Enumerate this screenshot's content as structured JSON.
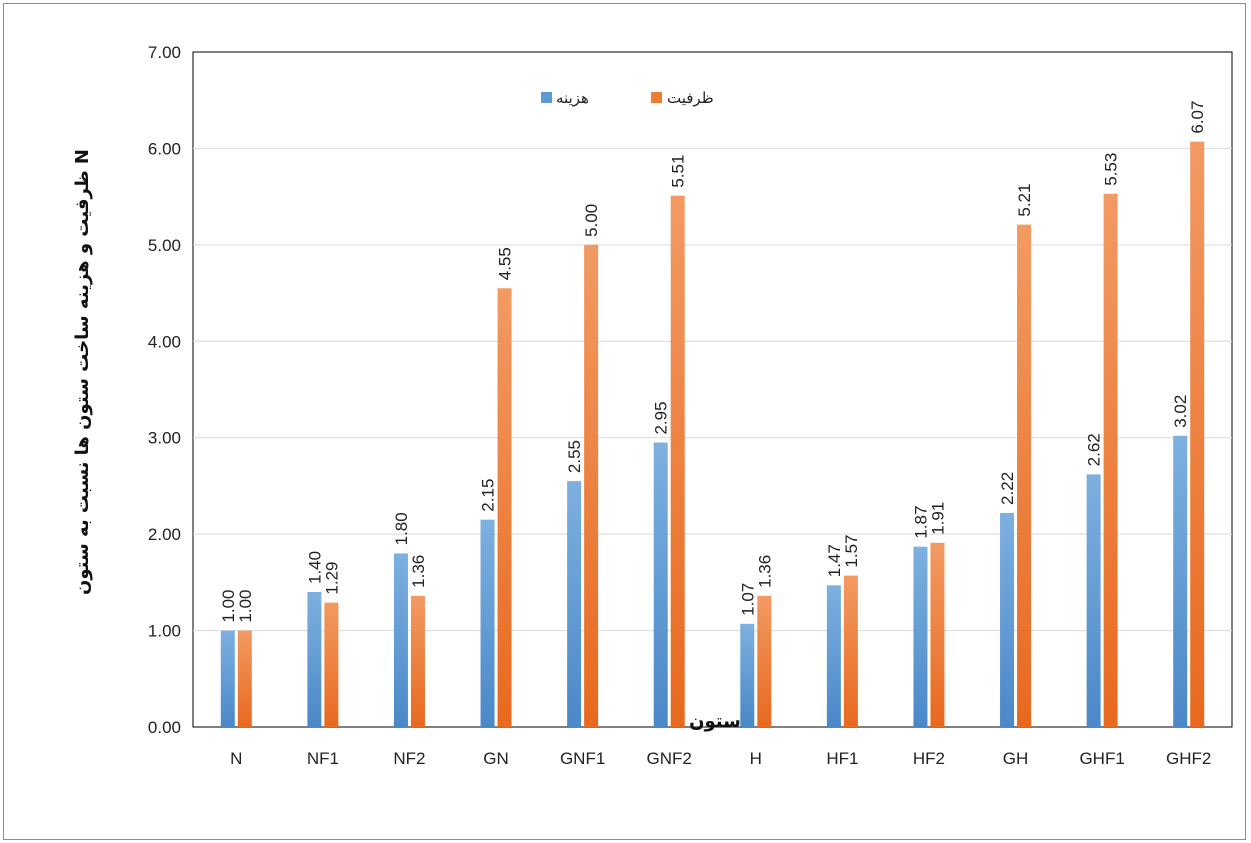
{
  "chart_data": {
    "type": "bar",
    "categories": [
      "N",
      "NF1",
      "NF2",
      "GN",
      "GNF1",
      "GNF2",
      "H",
      "HF1",
      "HF2",
      "GH",
      "GHF1",
      "GHF2"
    ],
    "series": [
      {
        "name": "هزینه",
        "color": "#5b9bd5",
        "values": [
          1.0,
          1.4,
          1.8,
          2.15,
          2.55,
          2.95,
          1.07,
          1.47,
          1.87,
          2.22,
          2.62,
          3.02
        ]
      },
      {
        "name": "ظرفیت",
        "color": "#ed7d31",
        "values": [
          1.0,
          1.29,
          1.36,
          4.55,
          5.0,
          5.51,
          1.36,
          1.57,
          1.91,
          5.21,
          5.53,
          6.07
        ]
      }
    ],
    "data_labels": {
      "0": [
        "1.00",
        "1.40",
        "1.80",
        "2.15",
        "2.55",
        "2.95",
        "1.07",
        "1.47",
        "1.87",
        "2.22",
        "2.62",
        "3.02"
      ],
      "1": [
        "1.00",
        "1.29",
        "1.36",
        "4.55",
        "5.00",
        "5.51",
        "1.36",
        "1.57",
        "1.91",
        "5.21",
        "5.53",
        "6.07"
      ]
    },
    "xlabel": "ستون",
    "ylabel": "ظرفیت و هزینه ساخت ستون ها نسبت به ستون N",
    "ylim": [
      0,
      7
    ],
    "yticks": [
      0,
      1,
      2,
      3,
      4,
      5,
      6,
      7
    ],
    "ytick_labels": [
      "0.00",
      "1.00",
      "2.00",
      "3.00",
      "4.00",
      "5.00",
      "6.00",
      "7.00"
    ],
    "grid": true,
    "legend_position": "top-center"
  }
}
